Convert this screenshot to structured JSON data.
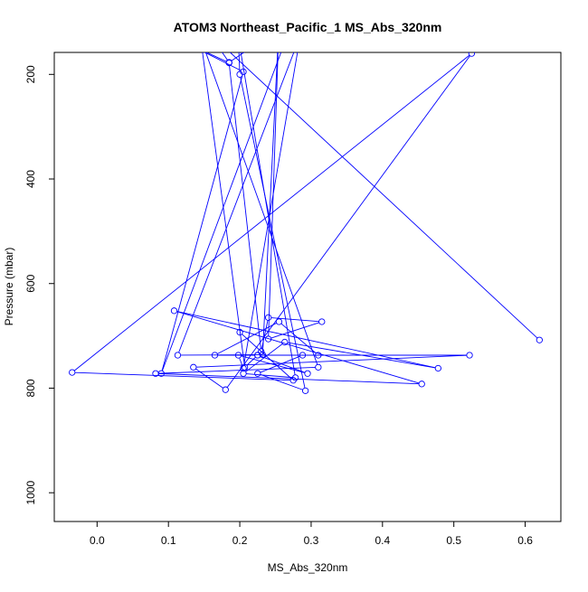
{
  "chart_data": {
    "type": "scatter",
    "title": "ATOM3 Northeast_Pacific_1 MS_Abs_320nm",
    "xlabel": "MS_Abs_320nm",
    "ylabel": "Pressure (mbar)",
    "xlim": [
      -0.06,
      0.65
    ],
    "ylim": [
      1055,
      158
    ],
    "y_reversed": true,
    "x_ticks": [
      "0.0",
      "0.1",
      "0.2",
      "0.3",
      "0.4",
      "0.5",
      "0.6"
    ],
    "y_ticks": [
      "200",
      "400",
      "600",
      "800",
      "1000"
    ],
    "grid": false,
    "legend": "none",
    "series_color": "#0000ff",
    "marker": "open-circle",
    "line": true,
    "series": [
      {
        "x": [
          0.62,
          0.155,
          0.185,
          0.275,
          0.09,
          0.205,
          0.11,
          0.185,
          0.23,
          0.24,
          0.315,
          0.24,
          0.255,
          0.232,
          0.113,
          0.285,
          0.205,
          0.198,
          0.295,
          0.225,
          0.165,
          0.255,
          0.31,
          0.225,
          0.207,
          0.145,
          0.31,
          0.082,
          0.455,
          0.108,
          0.478,
          0.263,
          0.205,
          0.278,
          0.198,
          0.2,
          0.292,
          0.225,
          0.288,
          0.522,
          0.135,
          0.18,
          0.525,
          -0.035,
          0.275,
          0.2
        ],
        "y": [
          708,
          118,
          177,
          95,
          772,
          195,
          130,
          178,
          730,
          665,
          673,
          706,
          100,
          736,
          737,
          125,
          762,
          737,
          772,
          737,
          737,
          673,
          737,
          737,
          760,
          130,
          760,
          772,
          792,
          652,
          762,
          712,
          772,
          780,
          130,
          200,
          805,
          772,
          737,
          737,
          760,
          803,
          160,
          770,
          785,
          693
        ]
      }
    ]
  }
}
